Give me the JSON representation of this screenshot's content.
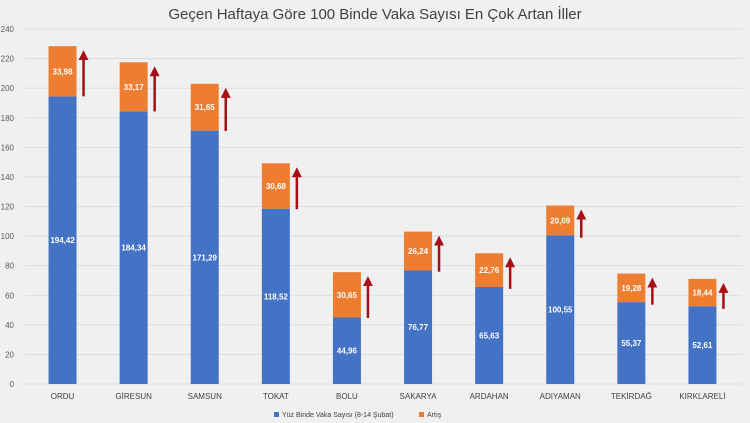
{
  "chart_data": {
    "type": "bar",
    "stacked": true,
    "title": "Geçen Haftaya Göre 100 Binde Vaka Sayısı En Çok Artan İller",
    "xlabel": "",
    "ylabel": "",
    "ylim": [
      0,
      240
    ],
    "yticks": [
      0,
      20,
      40,
      60,
      80,
      100,
      120,
      140,
      160,
      180,
      200,
      220,
      240
    ],
    "grid": true,
    "legend_position": "bottom",
    "categories": [
      "ORDU",
      "GİRESUN",
      "SAMSUN",
      "TOKAT",
      "BOLU",
      "SAKARYA",
      "ARDAHAN",
      "ADIYAMAN",
      "TEKİRDAĞ",
      "KIRKLARELİ"
    ],
    "series": [
      {
        "name": "Yüz Binde Vaka Sayısı (8-14 Şubat)",
        "color": "#4472c4",
        "values": [
          194.42,
          184.34,
          171.29,
          118.52,
          44.96,
          76.77,
          65.63,
          100.55,
          55.37,
          52.61
        ],
        "labels": [
          "194,42",
          "184,34",
          "171,29",
          "118,52",
          "44,96",
          "76,77",
          "65,63",
          "100,55",
          "55,37",
          "52,61"
        ]
      },
      {
        "name": "Artış",
        "color": "#ed7d31",
        "values": [
          33.98,
          33.17,
          31.65,
          30.68,
          30.65,
          26.24,
          22.76,
          20.09,
          19.28,
          18.44
        ],
        "labels": [
          "33,98",
          "33,17",
          "31,65",
          "30,68",
          "30,65",
          "26,24",
          "22,76",
          "20,09",
          "19,28",
          "18,44"
        ]
      }
    ],
    "annotation_color": "#a50f15"
  }
}
